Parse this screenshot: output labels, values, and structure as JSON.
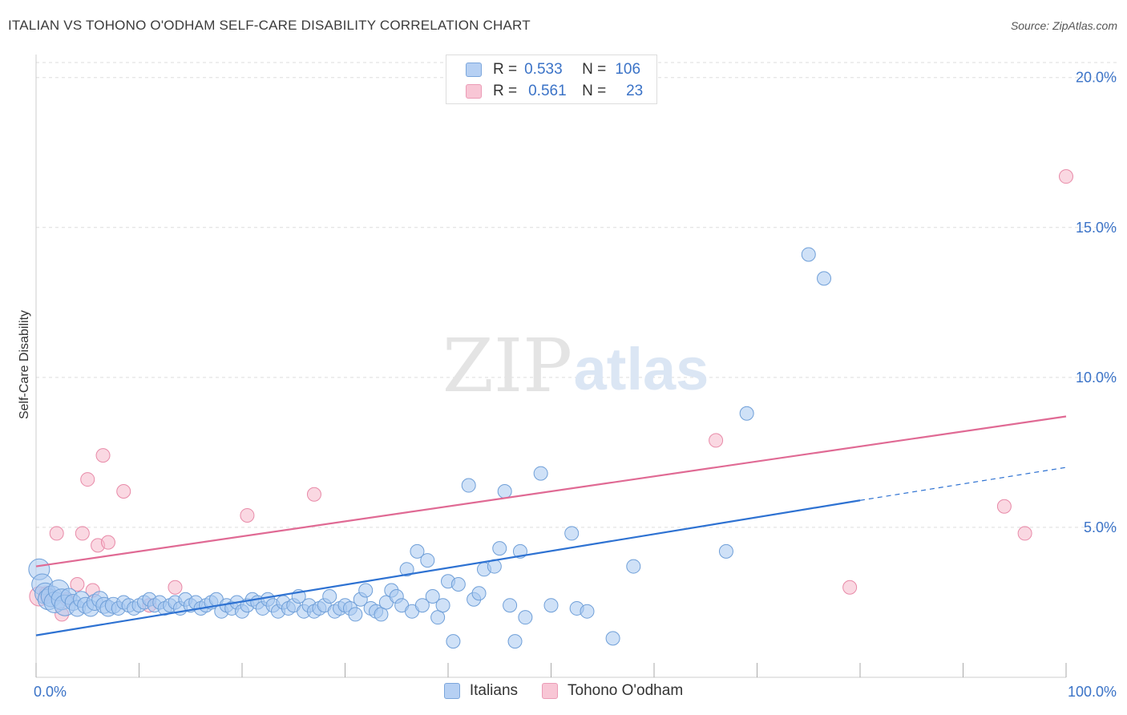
{
  "header": {
    "title": "ITALIAN VS TOHONO O'ODHAM SELF-CARE DISABILITY CORRELATION CHART",
    "source": "Source: ZipAtlas.com"
  },
  "watermark": {
    "part1": "ZIP",
    "part2": "atlas"
  },
  "legend": {
    "r_label": "R =",
    "n_label": "N =",
    "rows": [
      {
        "series": "Italians",
        "r": "0.533",
        "n": "106"
      },
      {
        "series": "Tohono O'odham",
        "r": "0.561",
        "n": "23"
      }
    ]
  },
  "bottom_legend": [
    "Italians",
    "Tohono O'odham"
  ],
  "colors": {
    "italians_fill": "#a8c8f0",
    "italians_stroke": "#6f9fd8",
    "italians_line": "#2e72d2",
    "tohono_fill": "#f6b8cb",
    "tohono_stroke": "#e88aa8",
    "tohono_line": "#e06a94",
    "axis_label": "#3b73c7",
    "grid": "#dddddd"
  },
  "chart_data": {
    "type": "scatter",
    "title": "ITALIAN VS TOHONO O'ODHAM SELF-CARE DISABILITY CORRELATION CHART",
    "xlabel": "",
    "ylabel": "Self-Care Disability",
    "xlim": [
      0,
      100
    ],
    "ylim": [
      0,
      20.5
    ],
    "x_tick_labels": [
      "0.0%",
      "100.0%"
    ],
    "y_ticks": [
      5,
      10,
      15,
      20
    ],
    "y_tick_labels": [
      "5.0%",
      "10.0%",
      "15.0%",
      "20.0%"
    ],
    "grid": "horizontal dashed",
    "legend_placement": "top-center",
    "series": [
      {
        "name": "Italians",
        "points": [
          [
            0.3,
            3.6
          ],
          [
            0.6,
            3.1
          ],
          [
            0.9,
            2.8
          ],
          [
            1.2,
            2.6
          ],
          [
            1.5,
            2.7
          ],
          [
            1.8,
            2.5
          ],
          [
            2.2,
            2.9
          ],
          [
            2.5,
            2.6
          ],
          [
            2.8,
            2.4
          ],
          [
            3.2,
            2.7
          ],
          [
            3.6,
            2.5
          ],
          [
            4.0,
            2.3
          ],
          [
            4.4,
            2.6
          ],
          [
            4.8,
            2.4
          ],
          [
            5.3,
            2.3
          ],
          [
            5.7,
            2.5
          ],
          [
            6.2,
            2.6
          ],
          [
            6.6,
            2.4
          ],
          [
            7.0,
            2.3
          ],
          [
            7.5,
            2.4
          ],
          [
            8.0,
            2.3
          ],
          [
            8.5,
            2.5
          ],
          [
            9.0,
            2.4
          ],
          [
            9.5,
            2.3
          ],
          [
            10.0,
            2.4
          ],
          [
            10.5,
            2.5
          ],
          [
            11.0,
            2.6
          ],
          [
            11.5,
            2.4
          ],
          [
            12.0,
            2.5
          ],
          [
            12.5,
            2.3
          ],
          [
            13.0,
            2.4
          ],
          [
            13.5,
            2.5
          ],
          [
            14.0,
            2.3
          ],
          [
            14.5,
            2.6
          ],
          [
            15.0,
            2.4
          ],
          [
            15.5,
            2.5
          ],
          [
            16.0,
            2.3
          ],
          [
            16.5,
            2.4
          ],
          [
            17.0,
            2.5
          ],
          [
            17.5,
            2.6
          ],
          [
            18.0,
            2.2
          ],
          [
            18.5,
            2.4
          ],
          [
            19.0,
            2.3
          ],
          [
            19.5,
            2.5
          ],
          [
            20.0,
            2.2
          ],
          [
            20.5,
            2.4
          ],
          [
            21.0,
            2.6
          ],
          [
            21.5,
            2.5
          ],
          [
            22.0,
            2.3
          ],
          [
            22.5,
            2.6
          ],
          [
            23.0,
            2.4
          ],
          [
            23.5,
            2.2
          ],
          [
            24.0,
            2.5
          ],
          [
            24.5,
            2.3
          ],
          [
            25.0,
            2.4
          ],
          [
            25.5,
            2.7
          ],
          [
            26.0,
            2.2
          ],
          [
            26.5,
            2.4
          ],
          [
            27.0,
            2.2
          ],
          [
            27.5,
            2.3
          ],
          [
            28.0,
            2.4
          ],
          [
            28.5,
            2.7
          ],
          [
            29.0,
            2.2
          ],
          [
            29.5,
            2.3
          ],
          [
            30.0,
            2.4
          ],
          [
            30.5,
            2.3
          ],
          [
            31.0,
            2.1
          ],
          [
            31.5,
            2.6
          ],
          [
            32.0,
            2.9
          ],
          [
            32.5,
            2.3
          ],
          [
            33.0,
            2.2
          ],
          [
            33.5,
            2.1
          ],
          [
            34.0,
            2.5
          ],
          [
            34.5,
            2.9
          ],
          [
            35.0,
            2.7
          ],
          [
            35.5,
            2.4
          ],
          [
            36.0,
            3.6
          ],
          [
            36.5,
            2.2
          ],
          [
            37.0,
            4.2
          ],
          [
            37.5,
            2.4
          ],
          [
            38.0,
            3.9
          ],
          [
            38.5,
            2.7
          ],
          [
            39.0,
            2.0
          ],
          [
            39.5,
            2.4
          ],
          [
            40.0,
            3.2
          ],
          [
            40.5,
            1.2
          ],
          [
            41.0,
            3.1
          ],
          [
            42.0,
            6.4
          ],
          [
            42.5,
            2.6
          ],
          [
            43.0,
            2.8
          ],
          [
            43.5,
            3.6
          ],
          [
            44.5,
            3.7
          ],
          [
            45.0,
            4.3
          ],
          [
            45.5,
            6.2
          ],
          [
            46.0,
            2.4
          ],
          [
            46.5,
            1.2
          ],
          [
            47.0,
            4.2
          ],
          [
            47.5,
            2.0
          ],
          [
            49.0,
            6.8
          ],
          [
            50.0,
            2.4
          ],
          [
            52.0,
            4.8
          ],
          [
            52.5,
            2.3
          ],
          [
            53.5,
            2.2
          ],
          [
            56.0,
            1.3
          ],
          [
            58.0,
            3.7
          ],
          [
            67.0,
            4.2
          ],
          [
            69.0,
            8.8
          ],
          [
            75.0,
            14.1
          ],
          [
            76.5,
            13.3
          ]
        ],
        "trend": {
          "from": [
            0,
            1.4
          ],
          "solid_to": [
            80,
            5.9
          ],
          "dashed_to": [
            100,
            7.0
          ]
        }
      },
      {
        "name": "Tohono O'odham",
        "points": [
          [
            0.3,
            2.7
          ],
          [
            1.0,
            2.8
          ],
          [
            2.0,
            4.8
          ],
          [
            2.5,
            2.1
          ],
          [
            3.0,
            2.6
          ],
          [
            4.0,
            3.1
          ],
          [
            4.5,
            4.8
          ],
          [
            5.0,
            6.6
          ],
          [
            5.5,
            2.9
          ],
          [
            6.0,
            4.4
          ],
          [
            6.5,
            7.4
          ],
          [
            7.0,
            4.5
          ],
          [
            8.5,
            6.2
          ],
          [
            11.0,
            2.4
          ],
          [
            13.5,
            3.0
          ],
          [
            20.5,
            5.4
          ],
          [
            27.0,
            6.1
          ],
          [
            66.0,
            7.9
          ],
          [
            79.0,
            3.0
          ],
          [
            94.0,
            5.7
          ],
          [
            96.0,
            4.8
          ],
          [
            100.0,
            16.7
          ]
        ],
        "trend": {
          "from": [
            0,
            3.7
          ],
          "to": [
            100,
            8.7
          ]
        }
      }
    ]
  }
}
